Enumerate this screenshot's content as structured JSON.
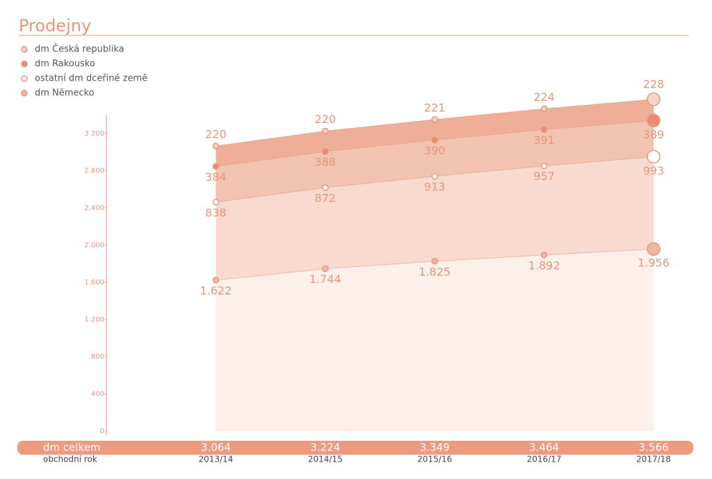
{
  "chart_data": {
    "type": "stacked-area",
    "title": "Prodejny",
    "categories": [
      "2013/14",
      "2014/15",
      "2015/16",
      "2016/17",
      "2017/18"
    ],
    "series": [
      {
        "name": "dm Česká republika",
        "color": "#eeae98",
        "marker_color": "#f7d3c5",
        "values": [
          220,
          220,
          221,
          224,
          228
        ]
      },
      {
        "name": "dm Rakousko",
        "color": "#f3c3b1",
        "marker_color": "#e98d72",
        "values": [
          384,
          388,
          390,
          391,
          389
        ]
      },
      {
        "name": "ostatní dm dceřiné země",
        "color": "#f8dacf",
        "marker_color": "#ffffff",
        "values": [
          838,
          872,
          913,
          957,
          993
        ]
      },
      {
        "name": "dm Německo",
        "color": "#fdf0ea",
        "marker_color": "#f2b7a3",
        "values": [
          1622,
          1744,
          1825,
          1892,
          1956
        ],
        "value_labels": [
          "1.622",
          "1.744",
          "1.825",
          "1.892",
          "1.956"
        ]
      }
    ],
    "totals": {
      "label": "dm celkem",
      "values": [
        3064,
        3224,
        3349,
        3464,
        3566
      ],
      "value_labels": [
        "3.064",
        "3.224",
        "3.349",
        "3.464",
        "3.566"
      ]
    },
    "x_label": "obchodní rok",
    "ylim": [
      0,
      3400
    ],
    "yticks": [
      0,
      400,
      800,
      {
        "value": 1200,
        "label": "1.200"
      },
      {
        "value": 1600,
        "label": "1.600"
      },
      {
        "value": 2000,
        "label": "2.000"
      },
      {
        "value": 2400,
        "label": "2.400"
      },
      {
        "value": 2800,
        "label": "2.800"
      },
      {
        "value": 3200,
        "label": "3 200"
      }
    ]
  }
}
